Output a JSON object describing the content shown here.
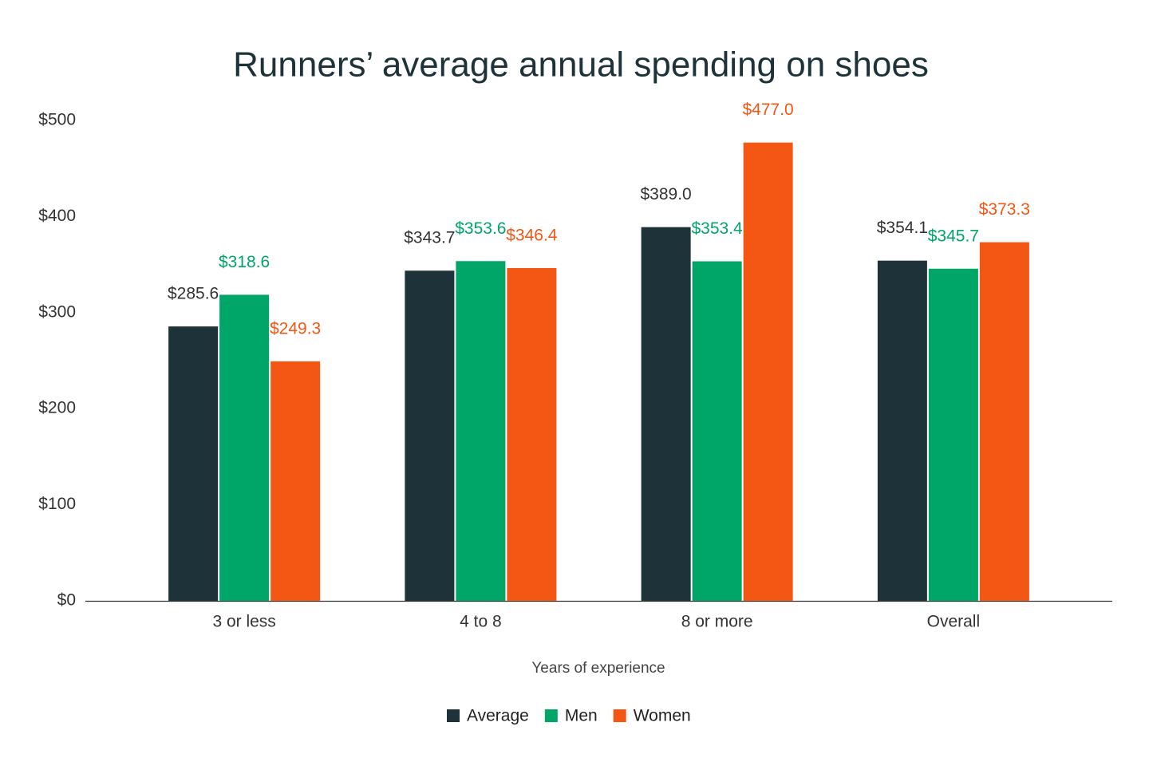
{
  "chart_data": {
    "type": "bar",
    "title": "Runners’ average annual spending on shoes",
    "x_label": "Years of experience",
    "categories": [
      "3 or less",
      "4 to 8",
      "8 or more",
      "Overall"
    ],
    "series": [
      {
        "name": "Average",
        "color": "#1e3339",
        "values": [
          285.6,
          343.7,
          389.0,
          354.1
        ],
        "value_labels": [
          "$285.6",
          "$343.7",
          "$389.0",
          "$354.1"
        ]
      },
      {
        "name": "Men",
        "color": "#00a568",
        "values": [
          318.6,
          353.6,
          353.4,
          345.7
        ],
        "value_labels": [
          "$318.6",
          "$353.6",
          "$353.4",
          "$345.7"
        ]
      },
      {
        "name": "Women",
        "color": "#f45614",
        "values": [
          249.3,
          346.4,
          477.0,
          373.3
        ],
        "value_labels": [
          "$249.3",
          "$346.4",
          "$477.0",
          "$373.3"
        ]
      }
    ],
    "ylim": [
      0,
      500
    ],
    "yticks": [
      {
        "value": 0,
        "label": "$0"
      },
      {
        "value": 100,
        "label": "$100"
      },
      {
        "value": 200,
        "label": "$200"
      },
      {
        "value": 300,
        "label": "$300"
      },
      {
        "value": 400,
        "label": "$400"
      },
      {
        "value": 500,
        "label": "$500"
      }
    ],
    "grid": false,
    "legend": "bottom"
  }
}
